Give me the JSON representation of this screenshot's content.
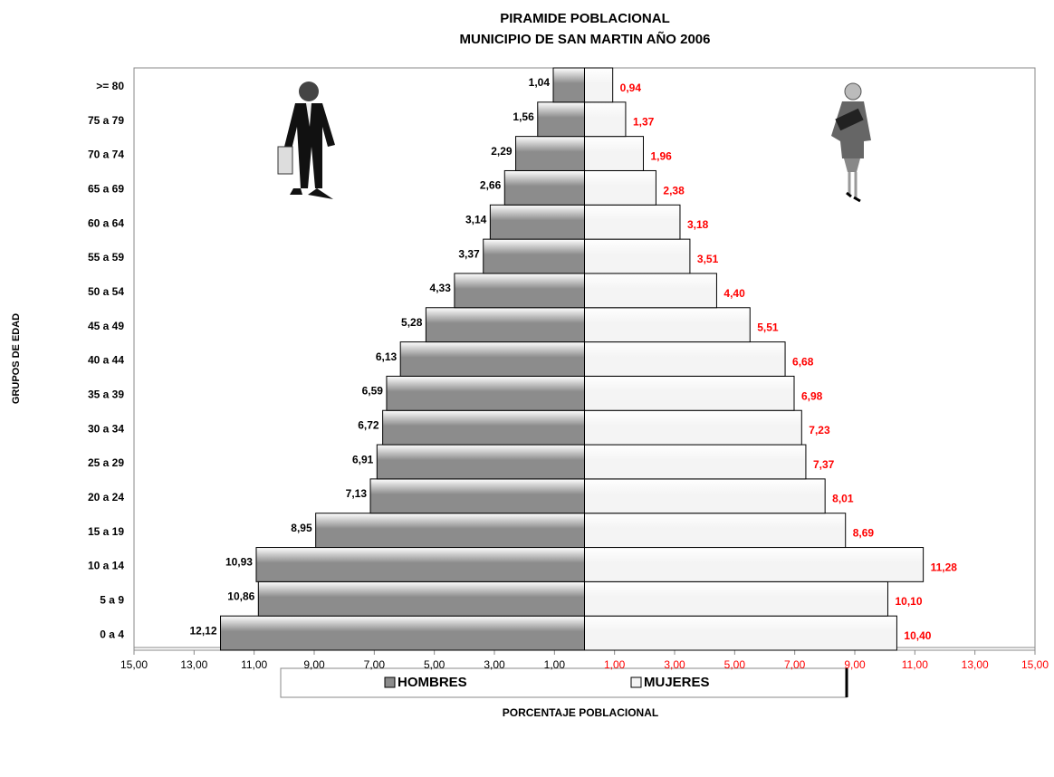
{
  "chart_data": {
    "type": "pyramid",
    "title": "PIRAMIDE POBLACIONAL",
    "subtitle": "MUNICIPIO DE SAN MARTIN  AÑO 2006",
    "x_label": "PORCENTAJE POBLACIONAL",
    "y_label": "GRUPOS DE EDAD",
    "categories": [
      "0 a 4",
      "5 a 9",
      "10 a 14",
      "15 a 19",
      "20 a 24",
      "25 a 29",
      "30 a 34",
      "35 a 39",
      "40 a 44",
      "45 a 49",
      "50 a 54",
      "55 a 59",
      "60 a 64",
      "65 a 69",
      "70 a 74",
      "75 a 79",
      ">= 80"
    ],
    "series": [
      {
        "name": "HOMBRES",
        "side": "left",
        "color": "#8c8c8c",
        "label_color": "#000000",
        "values": [
          12.12,
          10.86,
          10.93,
          8.95,
          7.13,
          6.91,
          6.72,
          6.59,
          6.13,
          5.28,
          4.33,
          3.37,
          3.14,
          2.66,
          2.29,
          1.56,
          1.04
        ],
        "value_labels": [
          "12,12",
          "10,86",
          "10,93",
          "8,95",
          "7,13",
          "6,91",
          "6,72",
          "6,59",
          "6,13",
          "5,28",
          "4,33",
          "3,37",
          "3,14",
          "2,66",
          "2,29",
          "1,56",
          "1,04"
        ]
      },
      {
        "name": "MUJERES",
        "side": "right",
        "color": "#f4f4f4",
        "label_color": "#ff0000",
        "values": [
          10.4,
          10.1,
          11.28,
          8.69,
          8.01,
          7.37,
          7.23,
          6.98,
          6.68,
          5.51,
          4.4,
          3.51,
          3.18,
          2.38,
          1.96,
          1.37,
          0.94
        ],
        "value_labels": [
          "10,40",
          "10,10",
          "11,28",
          "8,69",
          "8,01",
          "7,37",
          "7,23",
          "6,98",
          "6,68",
          "5,51",
          "4,40",
          "3,51",
          "3,18",
          "2,38",
          "1,96",
          "1,37",
          "0,94"
        ]
      }
    ],
    "xlim": [
      -15,
      15
    ],
    "xticks": [
      {
        "value": -15,
        "label": "15,00"
      },
      {
        "value": -13,
        "label": "13,00"
      },
      {
        "value": -11,
        "label": "11,00"
      },
      {
        "value": -9,
        "label": "9,00"
      },
      {
        "value": -7,
        "label": "7,00"
      },
      {
        "value": -5,
        "label": "5,00"
      },
      {
        "value": -3,
        "label": "3,00"
      },
      {
        "value": -1,
        "label": "1,00"
      },
      {
        "value": 1,
        "label": "1,00"
      },
      {
        "value": 3,
        "label": "3,00"
      },
      {
        "value": 5,
        "label": "5,00"
      },
      {
        "value": 7,
        "label": "7,00"
      },
      {
        "value": 9,
        "label": "9,00"
      },
      {
        "value": 11,
        "label": "11,00"
      },
      {
        "value": 13,
        "label": "13,00"
      },
      {
        "value": 15,
        "label": "15,00"
      }
    ],
    "right_tick_label_color": "#ff0000"
  }
}
